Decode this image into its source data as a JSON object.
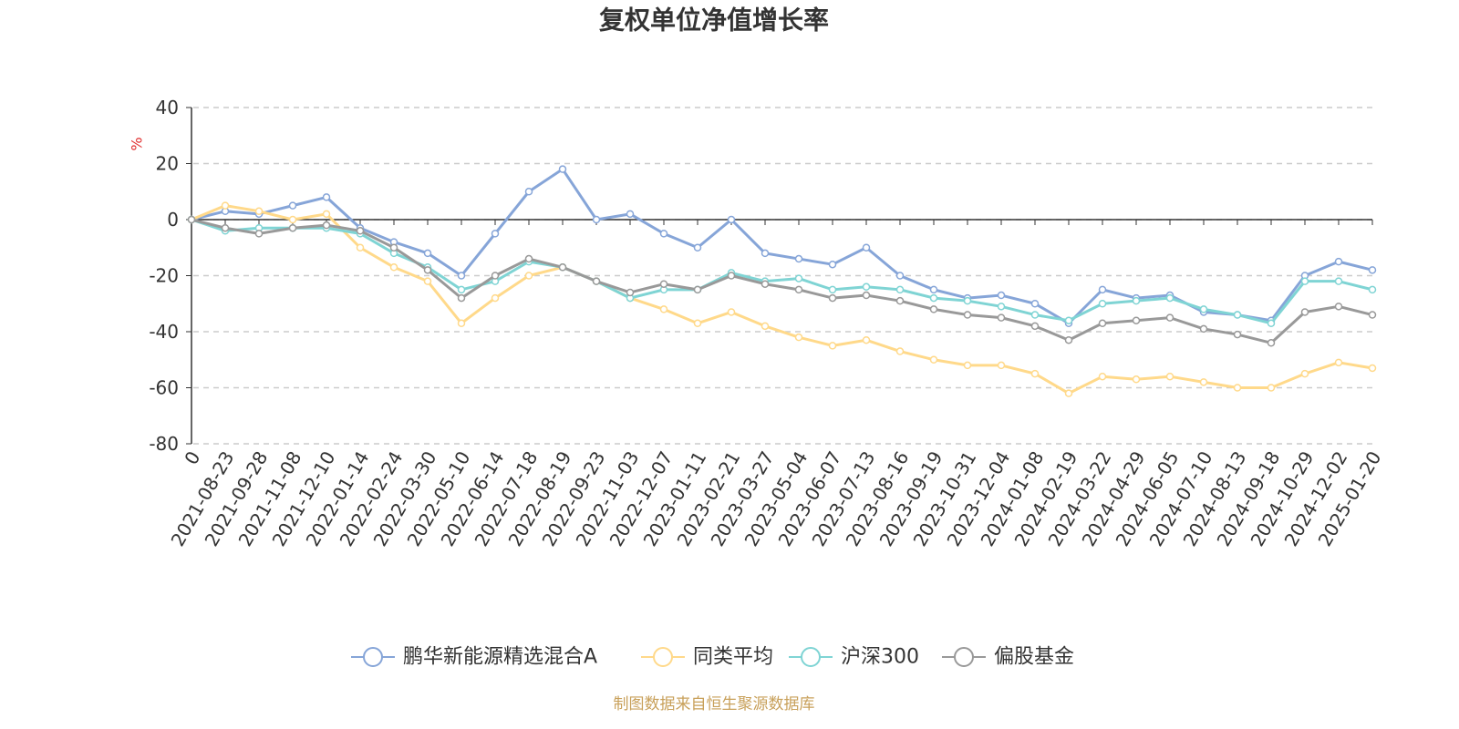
{
  "chart_data": {
    "type": "line",
    "title": "复权单位净值增长率",
    "y_label": "%",
    "source": "制图数据来自恒生聚源数据库",
    "categories": [
      "0",
      "2021-08-23",
      "2021-09-28",
      "2021-11-08",
      "2021-12-10",
      "2022-01-14",
      "2022-02-24",
      "2022-03-30",
      "2022-05-10",
      "2022-06-14",
      "2022-07-18",
      "2022-08-19",
      "2022-09-23",
      "2022-11-03",
      "2022-12-07",
      "2023-01-11",
      "2023-02-21",
      "2023-03-27",
      "2023-05-04",
      "2023-06-07",
      "2023-07-13",
      "2023-08-16",
      "2023-09-19",
      "2023-10-31",
      "2023-12-04",
      "2024-01-08",
      "2024-02-19",
      "2024-03-22",
      "2024-04-29",
      "2024-06-05",
      "2024-07-10",
      "2024-08-13",
      "2024-09-18",
      "2024-10-29",
      "2024-12-02",
      "2025-01-20"
    ],
    "series": [
      {
        "name": "鹏华新能源精选混合A",
        "color": "#86a5d8",
        "values": [
          0,
          3,
          2,
          5,
          8,
          -3,
          -8,
          -12,
          -20,
          -5,
          10,
          18,
          0,
          2,
          -5,
          -10,
          0,
          -12,
          -14,
          -16,
          -10,
          -20,
          -25,
          -28,
          -27,
          -30,
          -37,
          -25,
          -28,
          -27,
          -33,
          -34,
          -36,
          -20,
          -15,
          -18
        ]
      },
      {
        "name": "同类平均",
        "color": "#ffd98a",
        "values": [
          0,
          5,
          3,
          0,
          2,
          -10,
          -17,
          -22,
          -37,
          -28,
          -20,
          -17,
          -22,
          -28,
          -32,
          -37,
          -33,
          -38,
          -42,
          -45,
          -43,
          -47,
          -50,
          -52,
          -52,
          -55,
          -62,
          -56,
          -57,
          -56,
          -58,
          -60,
          -60,
          -55,
          -51,
          -53
        ]
      },
      {
        "name": "沪深300",
        "color": "#7fd4d4",
        "values": [
          0,
          -4,
          -3,
          -3,
          -3,
          -5,
          -12,
          -17,
          -25,
          -22,
          -15,
          -17,
          -22,
          -28,
          -25,
          -25,
          -19,
          -22,
          -21,
          -25,
          -24,
          -25,
          -28,
          -29,
          -31,
          -34,
          -36,
          -30,
          -29,
          -28,
          -32,
          -34,
          -37,
          -22,
          -22,
          -25
        ]
      },
      {
        "name": "偏股基金",
        "color": "#999999",
        "values": [
          0,
          -3,
          -5,
          -3,
          -2,
          -4,
          -10,
          -18,
          -28,
          -20,
          -14,
          -17,
          -22,
          -26,
          -23,
          -25,
          -20,
          -23,
          -25,
          -28,
          -27,
          -29,
          -32,
          -34,
          -35,
          -38,
          -43,
          -37,
          -36,
          -35,
          -39,
          -41,
          -44,
          -33,
          -31,
          -34
        ]
      }
    ],
    "ylim": [
      -80,
      40
    ],
    "yticks": [
      -80,
      -60,
      -40,
      -20,
      0,
      20,
      40
    ],
    "grid": true
  }
}
